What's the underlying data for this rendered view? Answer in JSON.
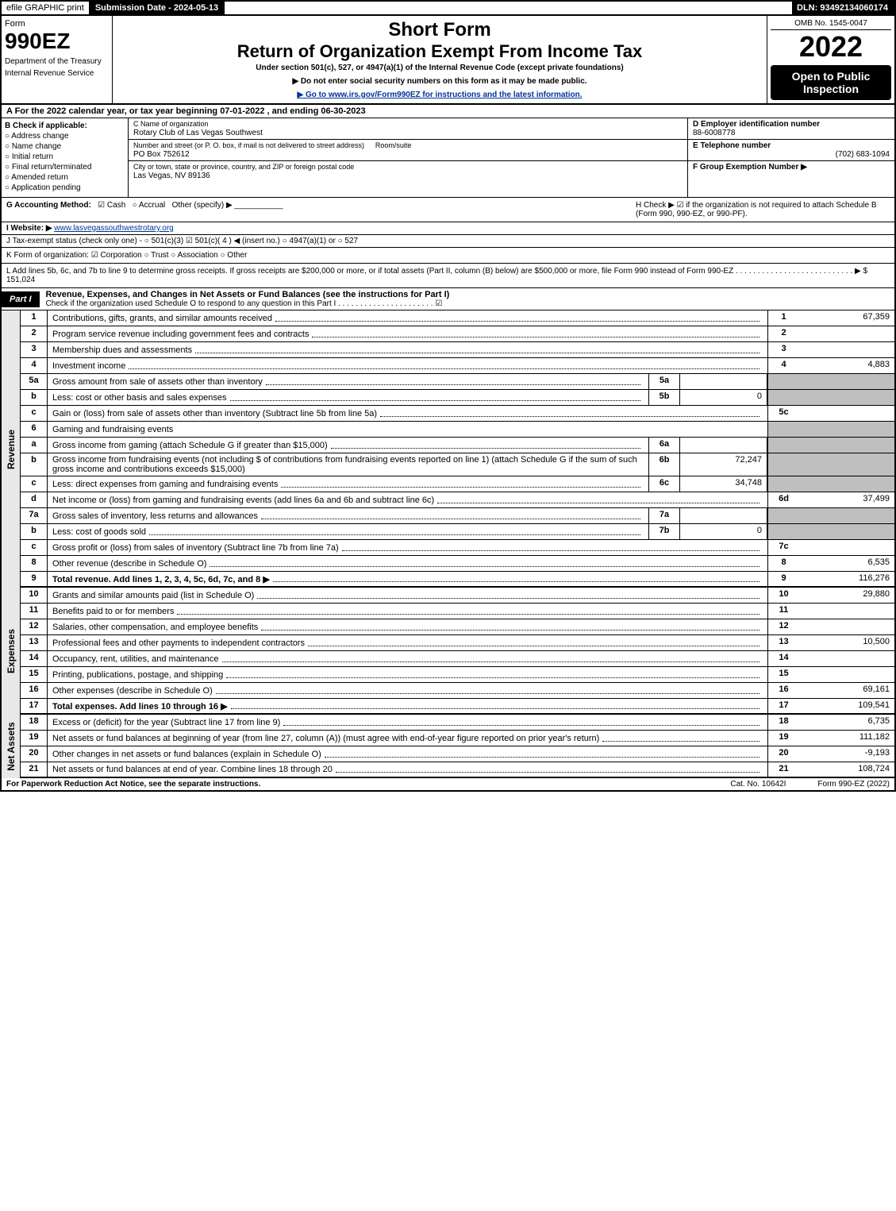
{
  "topbar": {
    "efile": "efile GRAPHIC print",
    "submission_label": "Submission Date - 2024-05-13",
    "dln_label": "DLN: 93492134060174"
  },
  "header": {
    "form_word": "Form",
    "form_number": "990EZ",
    "dept1": "Department of the Treasury",
    "dept2": "Internal Revenue Service",
    "short_form": "Short Form",
    "title": "Return of Organization Exempt From Income Tax",
    "sub": "Under section 501(c), 527, or 4947(a)(1) of the Internal Revenue Code (except private foundations)",
    "sub2a": "▶ Do not enter social security numbers on this form as it may be made public.",
    "sub2b": "▶ Go to www.irs.gov/Form990EZ for instructions and the latest information.",
    "omb": "OMB No. 1545-0047",
    "year": "2022",
    "open_public": "Open to Public Inspection"
  },
  "sectionA": "A  For the 2022 calendar year, or tax year beginning 07-01-2022 , and ending 06-30-2023",
  "b": {
    "label": "B  Check if applicable:",
    "opts": [
      "Address change",
      "Name change",
      "Initial return",
      "Final return/terminated",
      "Amended return",
      "Application pending"
    ]
  },
  "c": {
    "name_label": "C Name of organization",
    "name": "Rotary Club of Las Vegas Southwest",
    "street_label": "Number and street (or P. O. box, if mail is not delivered to street address)",
    "room_label": "Room/suite",
    "street": "PO Box 752612",
    "city_label": "City or town, state or province, country, and ZIP or foreign postal code",
    "city": "Las Vegas, NV  89136"
  },
  "d": {
    "label": "D Employer identification number",
    "value": "88-6008778"
  },
  "e": {
    "label": "E Telephone number",
    "value": "(702) 683-1094"
  },
  "f": {
    "label": "F Group Exemption Number  ▶"
  },
  "g": {
    "label": "G Accounting Method:",
    "cash": "Cash",
    "accrual": "Accrual",
    "other": "Other (specify) ▶"
  },
  "h": {
    "label": "H  Check ▶ ☑ if the organization is not required to attach Schedule B (Form 990, 990-EZ, or 990-PF)."
  },
  "i": {
    "label": "I Website: ▶",
    "value": "www.lasvegassouthwestrotary.org"
  },
  "j": {
    "label": "J Tax-exempt status (check only one) -  ○ 501(c)(3)  ☑ 501(c)( 4 ) ◀ (insert no.)  ○ 4947(a)(1) or  ○ 527"
  },
  "k": {
    "label": "K Form of organization:  ☑ Corporation   ○ Trust   ○ Association   ○ Other"
  },
  "l": {
    "text": "L Add lines 5b, 6c, and 7b to line 9 to determine gross receipts. If gross receipts are $200,000 or more, or if total assets (Part II, column (B) below) are $500,000 or more, file Form 990 instead of Form 990-EZ  . . . . . . . . . . . . . . . . . . . . . . . . . . . ▶ $ 151,024"
  },
  "part1": {
    "label": "Part I",
    "title": "Revenue, Expenses, and Changes in Net Assets or Fund Balances (see the instructions for Part I)",
    "sub": "Check if the organization used Schedule O to respond to any question in this Part I . . . . . . . . . . . . . . . . . . . . . . ☑"
  },
  "vlabels": {
    "revenue": "Revenue",
    "expenses": "Expenses",
    "netassets": "Net Assets"
  },
  "lines": {
    "1": {
      "no": "1",
      "desc": "Contributions, gifts, grants, and similar amounts received",
      "rbox": "1",
      "rval": "67,359"
    },
    "2": {
      "no": "2",
      "desc": "Program service revenue including government fees and contracts",
      "rbox": "2",
      "rval": ""
    },
    "3": {
      "no": "3",
      "desc": "Membership dues and assessments",
      "rbox": "3",
      "rval": ""
    },
    "4": {
      "no": "4",
      "desc": "Investment income",
      "rbox": "4",
      "rval": "4,883"
    },
    "5a": {
      "no": "5a",
      "desc": "Gross amount from sale of assets other than inventory",
      "mbox": "5a",
      "mval": ""
    },
    "5b": {
      "no": "b",
      "desc": "Less: cost or other basis and sales expenses",
      "mbox": "5b",
      "mval": "0"
    },
    "5c": {
      "no": "c",
      "desc": "Gain or (loss) from sale of assets other than inventory (Subtract line 5b from line 5a)",
      "rbox": "5c",
      "rval": ""
    },
    "6": {
      "no": "6",
      "desc": "Gaming and fundraising events"
    },
    "6a": {
      "no": "a",
      "desc": "Gross income from gaming (attach Schedule G if greater than $15,000)",
      "mbox": "6a",
      "mval": ""
    },
    "6b": {
      "no": "b",
      "desc": "Gross income from fundraising events (not including $                  of contributions from fundraising events reported on line 1) (attach Schedule G if the sum of such gross income and contributions exceeds $15,000)",
      "mbox": "6b",
      "mval": "72,247"
    },
    "6c": {
      "no": "c",
      "desc": "Less: direct expenses from gaming and fundraising events",
      "mbox": "6c",
      "mval": "34,748"
    },
    "6d": {
      "no": "d",
      "desc": "Net income or (loss) from gaming and fundraising events (add lines 6a and 6b and subtract line 6c)",
      "rbox": "6d",
      "rval": "37,499"
    },
    "7a": {
      "no": "7a",
      "desc": "Gross sales of inventory, less returns and allowances",
      "mbox": "7a",
      "mval": ""
    },
    "7b": {
      "no": "b",
      "desc": "Less: cost of goods sold",
      "mbox": "7b",
      "mval": "0"
    },
    "7c": {
      "no": "c",
      "desc": "Gross profit or (loss) from sales of inventory (Subtract line 7b from line 7a)",
      "rbox": "7c",
      "rval": ""
    },
    "8": {
      "no": "8",
      "desc": "Other revenue (describe in Schedule O)",
      "rbox": "8",
      "rval": "6,535"
    },
    "9": {
      "no": "9",
      "desc": "Total revenue. Add lines 1, 2, 3, 4, 5c, 6d, 7c, and 8   ▶",
      "rbox": "9",
      "rval": "116,276",
      "bold": true
    },
    "10": {
      "no": "10",
      "desc": "Grants and similar amounts paid (list in Schedule O)",
      "rbox": "10",
      "rval": "29,880"
    },
    "11": {
      "no": "11",
      "desc": "Benefits paid to or for members",
      "rbox": "11",
      "rval": ""
    },
    "12": {
      "no": "12",
      "desc": "Salaries, other compensation, and employee benefits",
      "rbox": "12",
      "rval": ""
    },
    "13": {
      "no": "13",
      "desc": "Professional fees and other payments to independent contractors",
      "rbox": "13",
      "rval": "10,500"
    },
    "14": {
      "no": "14",
      "desc": "Occupancy, rent, utilities, and maintenance",
      "rbox": "14",
      "rval": ""
    },
    "15": {
      "no": "15",
      "desc": "Printing, publications, postage, and shipping",
      "rbox": "15",
      "rval": ""
    },
    "16": {
      "no": "16",
      "desc": "Other expenses (describe in Schedule O)",
      "rbox": "16",
      "rval": "69,161"
    },
    "17": {
      "no": "17",
      "desc": "Total expenses. Add lines 10 through 16   ▶",
      "rbox": "17",
      "rval": "109,541",
      "bold": true
    },
    "18": {
      "no": "18",
      "desc": "Excess or (deficit) for the year (Subtract line 17 from line 9)",
      "rbox": "18",
      "rval": "6,735"
    },
    "19": {
      "no": "19",
      "desc": "Net assets or fund balances at beginning of year (from line 27, column (A)) (must agree with end-of-year figure reported on prior year's return)",
      "rbox": "19",
      "rval": "111,182"
    },
    "20": {
      "no": "20",
      "desc": "Other changes in net assets or fund balances (explain in Schedule O)",
      "rbox": "20",
      "rval": "-9,193"
    },
    "21": {
      "no": "21",
      "desc": "Net assets or fund balances at end of year. Combine lines 18 through 20",
      "rbox": "21",
      "rval": "108,724"
    }
  },
  "footer": {
    "left": "For Paperwork Reduction Act Notice, see the separate instructions.",
    "mid": "Cat. No. 10642I",
    "right": "Form 990-EZ (2022)"
  }
}
